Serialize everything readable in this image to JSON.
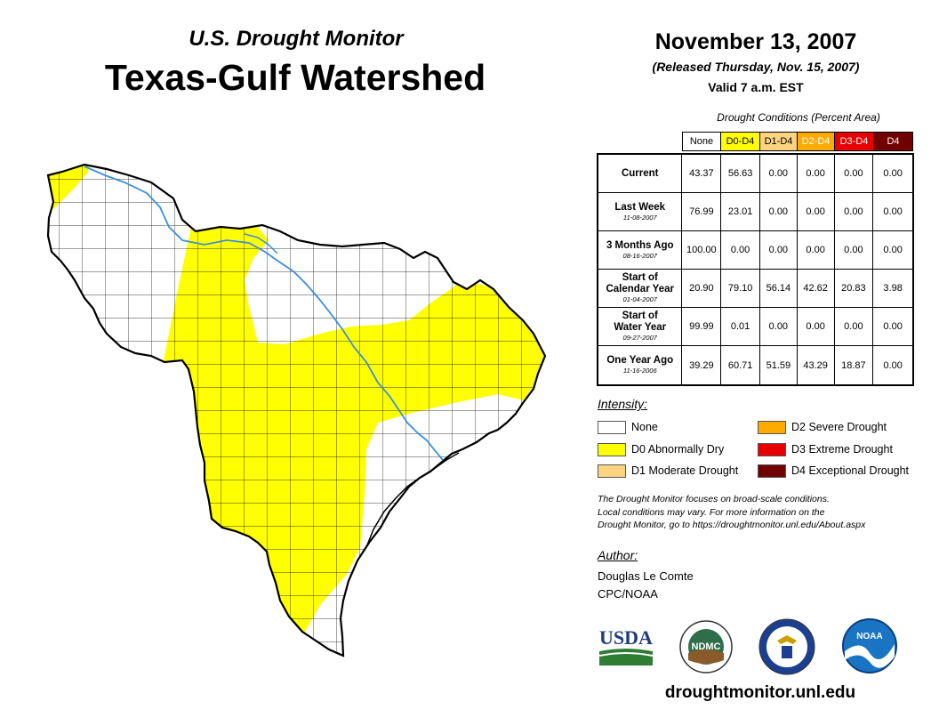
{
  "header": {
    "subtitle": "U.S. Drought Monitor",
    "title": "Texas-Gulf Watershed",
    "date": "November 13, 2007",
    "released": "(Released Thursday, Nov. 15, 2007)",
    "valid": "Valid 7 a.m. EST"
  },
  "table": {
    "caption": "Drought Conditions (Percent Area)",
    "columns": [
      {
        "label": "None",
        "bg": "#ffffff",
        "fg": "#000000"
      },
      {
        "label": "D0-D4",
        "bg": "#ffff00",
        "fg": "#000000"
      },
      {
        "label": "D1-D4",
        "bg": "#fcd37f",
        "fg": "#000000"
      },
      {
        "label": "D2-D4",
        "bg": "#ffaa00",
        "fg": "#ffffff"
      },
      {
        "label": "D3-D4",
        "bg": "#e60000",
        "fg": "#ffffff"
      },
      {
        "label": "D4",
        "bg": "#730000",
        "fg": "#ffffff"
      }
    ],
    "rows": [
      {
        "label": "Current",
        "date": "",
        "values": [
          "43.37",
          "56.63",
          "0.00",
          "0.00",
          "0.00",
          "0.00"
        ]
      },
      {
        "label": "Last Week",
        "date": "11-08-2007",
        "values": [
          "76.99",
          "23.01",
          "0.00",
          "0.00",
          "0.00",
          "0.00"
        ]
      },
      {
        "label": "3 Months Ago",
        "date": "08-16-2007",
        "values": [
          "100.00",
          "0.00",
          "0.00",
          "0.00",
          "0.00",
          "0.00"
        ]
      },
      {
        "label": "Start of Calendar Year",
        "date": "01-04-2007",
        "values": [
          "20.90",
          "79.10",
          "56.14",
          "42.62",
          "20.83",
          "3.98"
        ]
      },
      {
        "label": "Start of Water Year",
        "date": "09-27-2007",
        "values": [
          "99.99",
          "0.01",
          "0.00",
          "0.00",
          "0.00",
          "0.00"
        ]
      },
      {
        "label": "One Year Ago",
        "date": "11-16-2006",
        "values": [
          "39.29",
          "60.71",
          "51.59",
          "43.29",
          "18.87",
          "0.00"
        ]
      }
    ]
  },
  "legend": {
    "title": "Intensity:",
    "items": [
      {
        "label": "None",
        "color": "#ffffff"
      },
      {
        "label": "D0 Abnormally Dry",
        "color": "#ffff00"
      },
      {
        "label": "D1 Moderate Drought",
        "color": "#fcd37f"
      },
      {
        "label": "D2 Severe Drought",
        "color": "#ffaa00"
      },
      {
        "label": "D3 Extreme Drought",
        "color": "#e60000"
      },
      {
        "label": "D4 Exceptional Drought",
        "color": "#730000"
      }
    ]
  },
  "note": {
    "line1": "The Drought Monitor focuses on broad-scale conditions.",
    "line2": "Local conditions may vary. For more information on the",
    "line3": "Drought Monitor, go to https://droughtmonitor.unl.edu/About.aspx"
  },
  "author": {
    "heading": "Author:",
    "name": "Douglas Le Comte",
    "org": "CPC/NOAA"
  },
  "logos": {
    "usda": "USDA",
    "ndmc": "NDMC",
    "noaa": "NOAA"
  },
  "footer": {
    "url": "droughtmonitor.unl.edu"
  },
  "colors": {
    "river": "#3a8ee0",
    "d0": "#ffff00",
    "none": "#ffffff"
  }
}
